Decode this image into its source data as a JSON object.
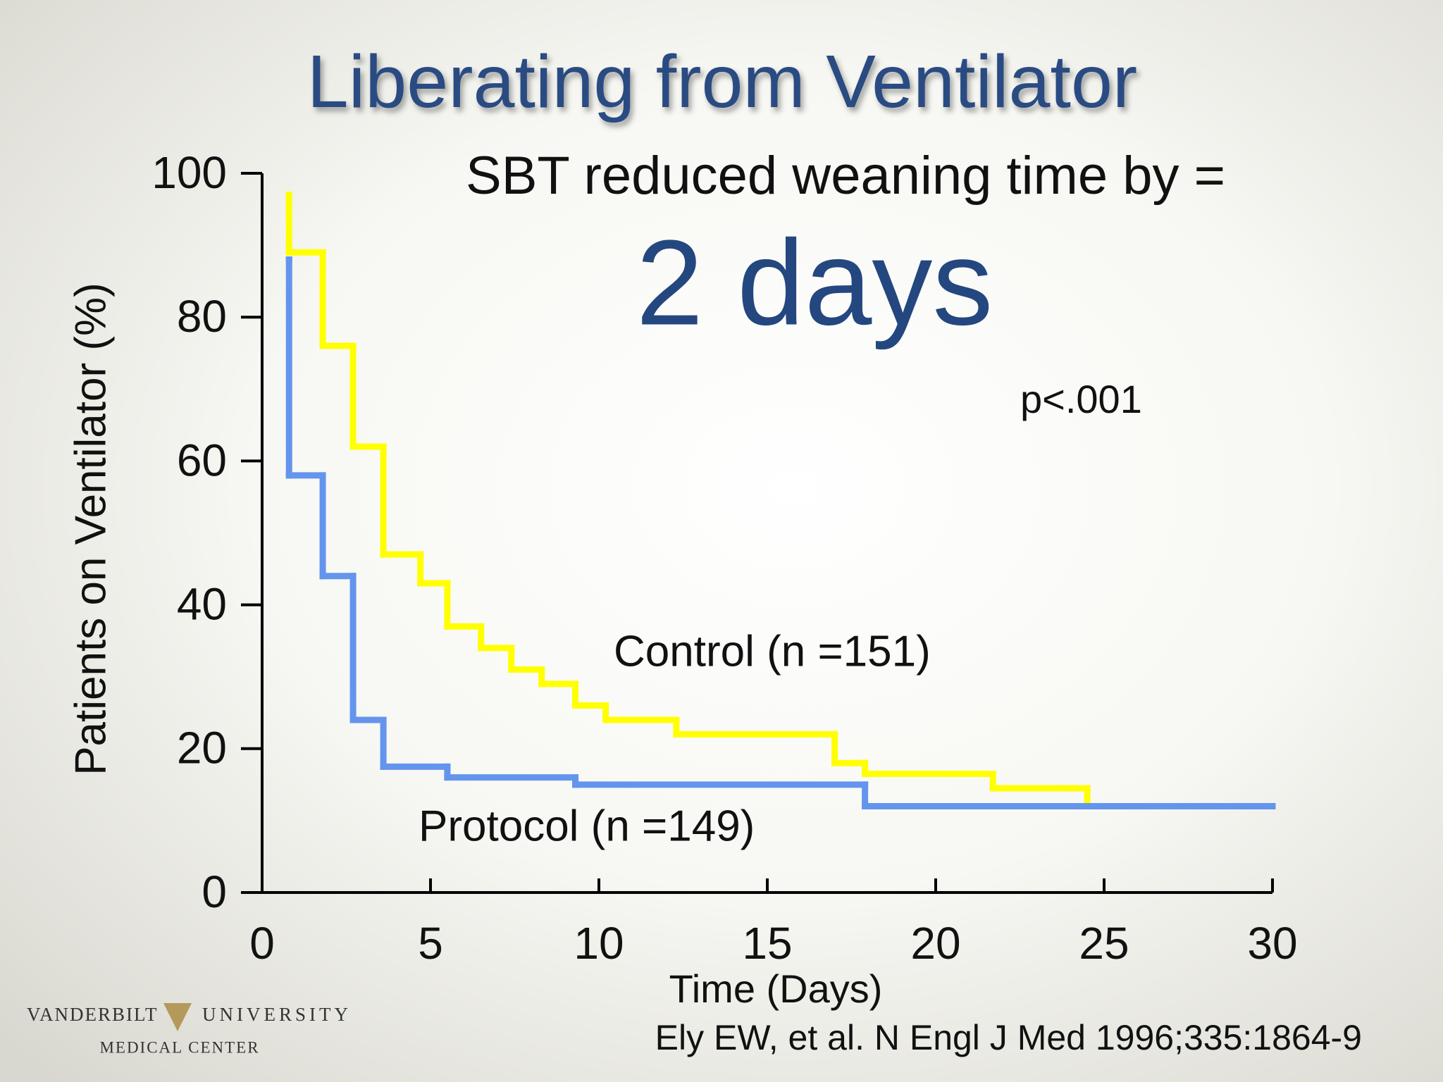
{
  "chart_data": {
    "type": "step",
    "title": "Liberating from Ventilator",
    "subtitle": "SBT reduced weaning time by =",
    "headline": "2 days",
    "annotation": "p<.001",
    "x_label": "Time (Days)",
    "y_label": "Patients on Ventilator (%)",
    "citation": "Ely EW, et al. N Engl J Med 1996;335:1864-9",
    "logo": {
      "left": "VANDERBILT",
      "right": "UNIVERSITY",
      "bottom": "MEDICAL CENTER"
    },
    "xlim": [
      0,
      30
    ],
    "xticks": [
      0,
      5,
      10,
      15,
      20,
      25,
      30
    ],
    "ylim": [
      0,
      100
    ],
    "yticks": [
      0,
      20,
      40,
      60,
      80,
      100
    ],
    "series": [
      {
        "name": "Control (n =151)",
        "color": "#ffff00",
        "x": [
          0.8,
          0.8,
          1.8,
          2.7,
          3.6,
          4.7,
          5.5,
          6.5,
          7.4,
          8.3,
          9.3,
          10.2,
          12.3,
          17,
          17.9,
          21.7,
          24.5,
          30
        ],
        "values": [
          97,
          89,
          76,
          62,
          47,
          43,
          37,
          34,
          31,
          29,
          26,
          24,
          22,
          18,
          16.5,
          14.5,
          12,
          12
        ]
      },
      {
        "name": "Protocol (n =149)",
        "color": "#6495ed",
        "x": [
          0.8,
          0.8,
          1.8,
          2.7,
          3.6,
          5.5,
          9.3,
          17.9,
          30
        ],
        "values": [
          88,
          58,
          44,
          24,
          17.5,
          16,
          15,
          12,
          12
        ]
      }
    ]
  }
}
